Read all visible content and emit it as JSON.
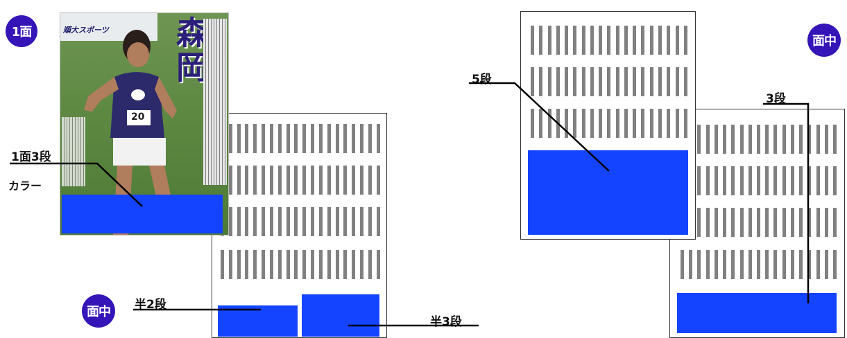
{
  "badges": {
    "front_page": "1面",
    "inner_left": "面中",
    "inner_right": "面中"
  },
  "labels": {
    "front_3dan": "1面3段",
    "color": "カラー",
    "half_2dan": "半2段",
    "half_3dan": "半3段",
    "five_dan": "5段",
    "three_dan": "3段"
  },
  "cover": {
    "masthead": "順大スポーツ",
    "headline": "森岡",
    "runner_bib": "20"
  },
  "colors": {
    "badge": "#3514b8",
    "ad_block": "#1444ff",
    "text_column": "#808080"
  }
}
